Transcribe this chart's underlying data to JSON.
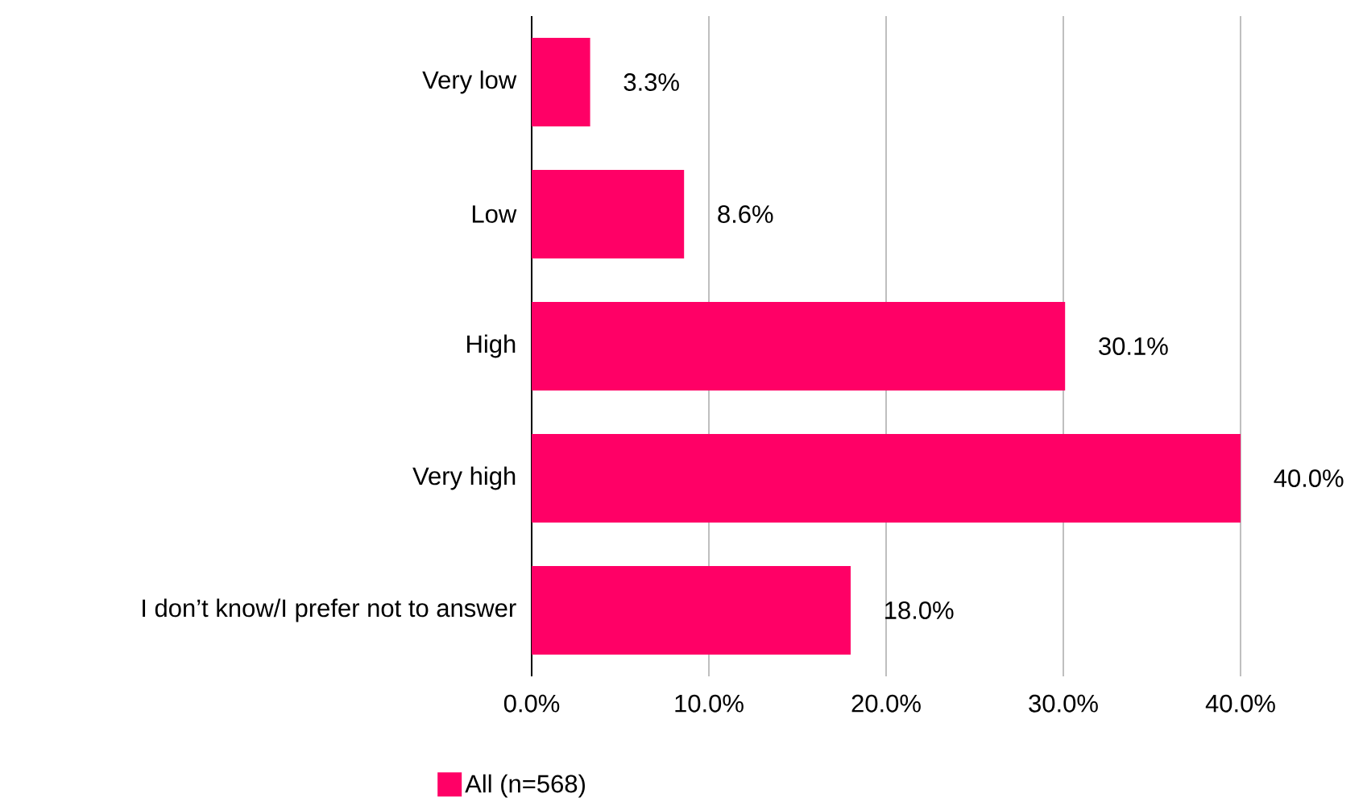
{
  "chart_data": {
    "type": "bar",
    "orientation": "horizontal",
    "categories": [
      "Very low",
      "Low",
      "High",
      "Very high",
      "I don’t know/I prefer not to answer"
    ],
    "series": [
      {
        "name": "All (n=568)",
        "color": "#ff0066",
        "values": [
          3.3,
          8.6,
          30.1,
          40.0,
          18.0
        ]
      }
    ],
    "value_labels": [
      "3.3%",
      "8.6%",
      "30.1%",
      "40.0%",
      "18.0%"
    ],
    "xlim": [
      0,
      40
    ],
    "xticks": [
      {
        "value": 0,
        "label": "0.0%"
      },
      {
        "value": 10,
        "label": "10.0%"
      },
      {
        "value": 20,
        "label": "20.0%"
      },
      {
        "value": 30,
        "label": "30.0%"
      },
      {
        "value": 40,
        "label": "40.0%"
      }
    ],
    "grid": "x",
    "legend": "bottom"
  }
}
